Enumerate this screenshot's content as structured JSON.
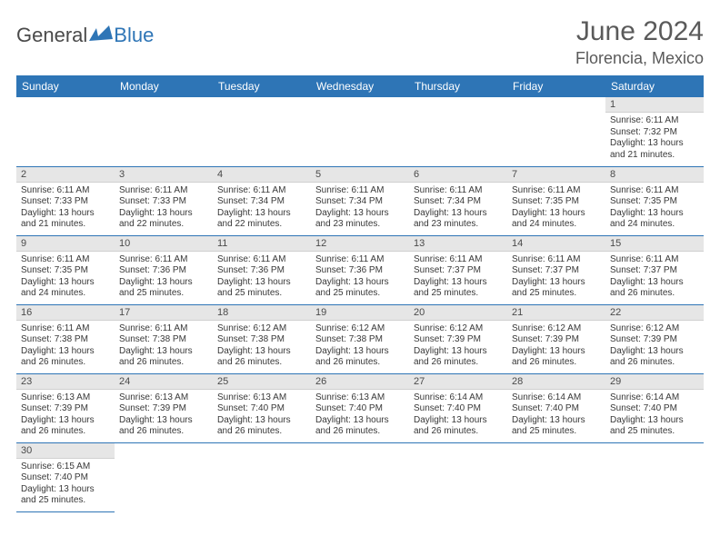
{
  "brand": {
    "part1": "General",
    "part2": "Blue"
  },
  "title": "June 2024",
  "location": "Florencia, Mexico",
  "colors": {
    "header_bg": "#2e75b6",
    "header_text": "#ffffff",
    "daynum_bg": "#e6e6e6",
    "border": "#2e75b6",
    "text": "#383838",
    "title_text": "#5a5a5a"
  },
  "typography": {
    "title_fontsize": 30,
    "location_fontsize": 18,
    "weekday_fontsize": 12,
    "daynum_fontsize": 11,
    "body_fontsize": 10
  },
  "weekdays": [
    "Sunday",
    "Monday",
    "Tuesday",
    "Wednesday",
    "Thursday",
    "Friday",
    "Saturday"
  ],
  "weeks": [
    [
      null,
      null,
      null,
      null,
      null,
      null,
      {
        "n": "1",
        "sr": "Sunrise: 6:11 AM",
        "ss": "Sunset: 7:32 PM",
        "dl": "Daylight: 13 hours and 21 minutes."
      }
    ],
    [
      {
        "n": "2",
        "sr": "Sunrise: 6:11 AM",
        "ss": "Sunset: 7:33 PM",
        "dl": "Daylight: 13 hours and 21 minutes."
      },
      {
        "n": "3",
        "sr": "Sunrise: 6:11 AM",
        "ss": "Sunset: 7:33 PM",
        "dl": "Daylight: 13 hours and 22 minutes."
      },
      {
        "n": "4",
        "sr": "Sunrise: 6:11 AM",
        "ss": "Sunset: 7:34 PM",
        "dl": "Daylight: 13 hours and 22 minutes."
      },
      {
        "n": "5",
        "sr": "Sunrise: 6:11 AM",
        "ss": "Sunset: 7:34 PM",
        "dl": "Daylight: 13 hours and 23 minutes."
      },
      {
        "n": "6",
        "sr": "Sunrise: 6:11 AM",
        "ss": "Sunset: 7:34 PM",
        "dl": "Daylight: 13 hours and 23 minutes."
      },
      {
        "n": "7",
        "sr": "Sunrise: 6:11 AM",
        "ss": "Sunset: 7:35 PM",
        "dl": "Daylight: 13 hours and 24 minutes."
      },
      {
        "n": "8",
        "sr": "Sunrise: 6:11 AM",
        "ss": "Sunset: 7:35 PM",
        "dl": "Daylight: 13 hours and 24 minutes."
      }
    ],
    [
      {
        "n": "9",
        "sr": "Sunrise: 6:11 AM",
        "ss": "Sunset: 7:35 PM",
        "dl": "Daylight: 13 hours and 24 minutes."
      },
      {
        "n": "10",
        "sr": "Sunrise: 6:11 AM",
        "ss": "Sunset: 7:36 PM",
        "dl": "Daylight: 13 hours and 25 minutes."
      },
      {
        "n": "11",
        "sr": "Sunrise: 6:11 AM",
        "ss": "Sunset: 7:36 PM",
        "dl": "Daylight: 13 hours and 25 minutes."
      },
      {
        "n": "12",
        "sr": "Sunrise: 6:11 AM",
        "ss": "Sunset: 7:36 PM",
        "dl": "Daylight: 13 hours and 25 minutes."
      },
      {
        "n": "13",
        "sr": "Sunrise: 6:11 AM",
        "ss": "Sunset: 7:37 PM",
        "dl": "Daylight: 13 hours and 25 minutes."
      },
      {
        "n": "14",
        "sr": "Sunrise: 6:11 AM",
        "ss": "Sunset: 7:37 PM",
        "dl": "Daylight: 13 hours and 25 minutes."
      },
      {
        "n": "15",
        "sr": "Sunrise: 6:11 AM",
        "ss": "Sunset: 7:37 PM",
        "dl": "Daylight: 13 hours and 26 minutes."
      }
    ],
    [
      {
        "n": "16",
        "sr": "Sunrise: 6:11 AM",
        "ss": "Sunset: 7:38 PM",
        "dl": "Daylight: 13 hours and 26 minutes."
      },
      {
        "n": "17",
        "sr": "Sunrise: 6:11 AM",
        "ss": "Sunset: 7:38 PM",
        "dl": "Daylight: 13 hours and 26 minutes."
      },
      {
        "n": "18",
        "sr": "Sunrise: 6:12 AM",
        "ss": "Sunset: 7:38 PM",
        "dl": "Daylight: 13 hours and 26 minutes."
      },
      {
        "n": "19",
        "sr": "Sunrise: 6:12 AM",
        "ss": "Sunset: 7:38 PM",
        "dl": "Daylight: 13 hours and 26 minutes."
      },
      {
        "n": "20",
        "sr": "Sunrise: 6:12 AM",
        "ss": "Sunset: 7:39 PM",
        "dl": "Daylight: 13 hours and 26 minutes."
      },
      {
        "n": "21",
        "sr": "Sunrise: 6:12 AM",
        "ss": "Sunset: 7:39 PM",
        "dl": "Daylight: 13 hours and 26 minutes."
      },
      {
        "n": "22",
        "sr": "Sunrise: 6:12 AM",
        "ss": "Sunset: 7:39 PM",
        "dl": "Daylight: 13 hours and 26 minutes."
      }
    ],
    [
      {
        "n": "23",
        "sr": "Sunrise: 6:13 AM",
        "ss": "Sunset: 7:39 PM",
        "dl": "Daylight: 13 hours and 26 minutes."
      },
      {
        "n": "24",
        "sr": "Sunrise: 6:13 AM",
        "ss": "Sunset: 7:39 PM",
        "dl": "Daylight: 13 hours and 26 minutes."
      },
      {
        "n": "25",
        "sr": "Sunrise: 6:13 AM",
        "ss": "Sunset: 7:40 PM",
        "dl": "Daylight: 13 hours and 26 minutes."
      },
      {
        "n": "26",
        "sr": "Sunrise: 6:13 AM",
        "ss": "Sunset: 7:40 PM",
        "dl": "Daylight: 13 hours and 26 minutes."
      },
      {
        "n": "27",
        "sr": "Sunrise: 6:14 AM",
        "ss": "Sunset: 7:40 PM",
        "dl": "Daylight: 13 hours and 26 minutes."
      },
      {
        "n": "28",
        "sr": "Sunrise: 6:14 AM",
        "ss": "Sunset: 7:40 PM",
        "dl": "Daylight: 13 hours and 25 minutes."
      },
      {
        "n": "29",
        "sr": "Sunrise: 6:14 AM",
        "ss": "Sunset: 7:40 PM",
        "dl": "Daylight: 13 hours and 25 minutes."
      }
    ],
    [
      {
        "n": "30",
        "sr": "Sunrise: 6:15 AM",
        "ss": "Sunset: 7:40 PM",
        "dl": "Daylight: 13 hours and 25 minutes."
      },
      null,
      null,
      null,
      null,
      null,
      null
    ]
  ]
}
